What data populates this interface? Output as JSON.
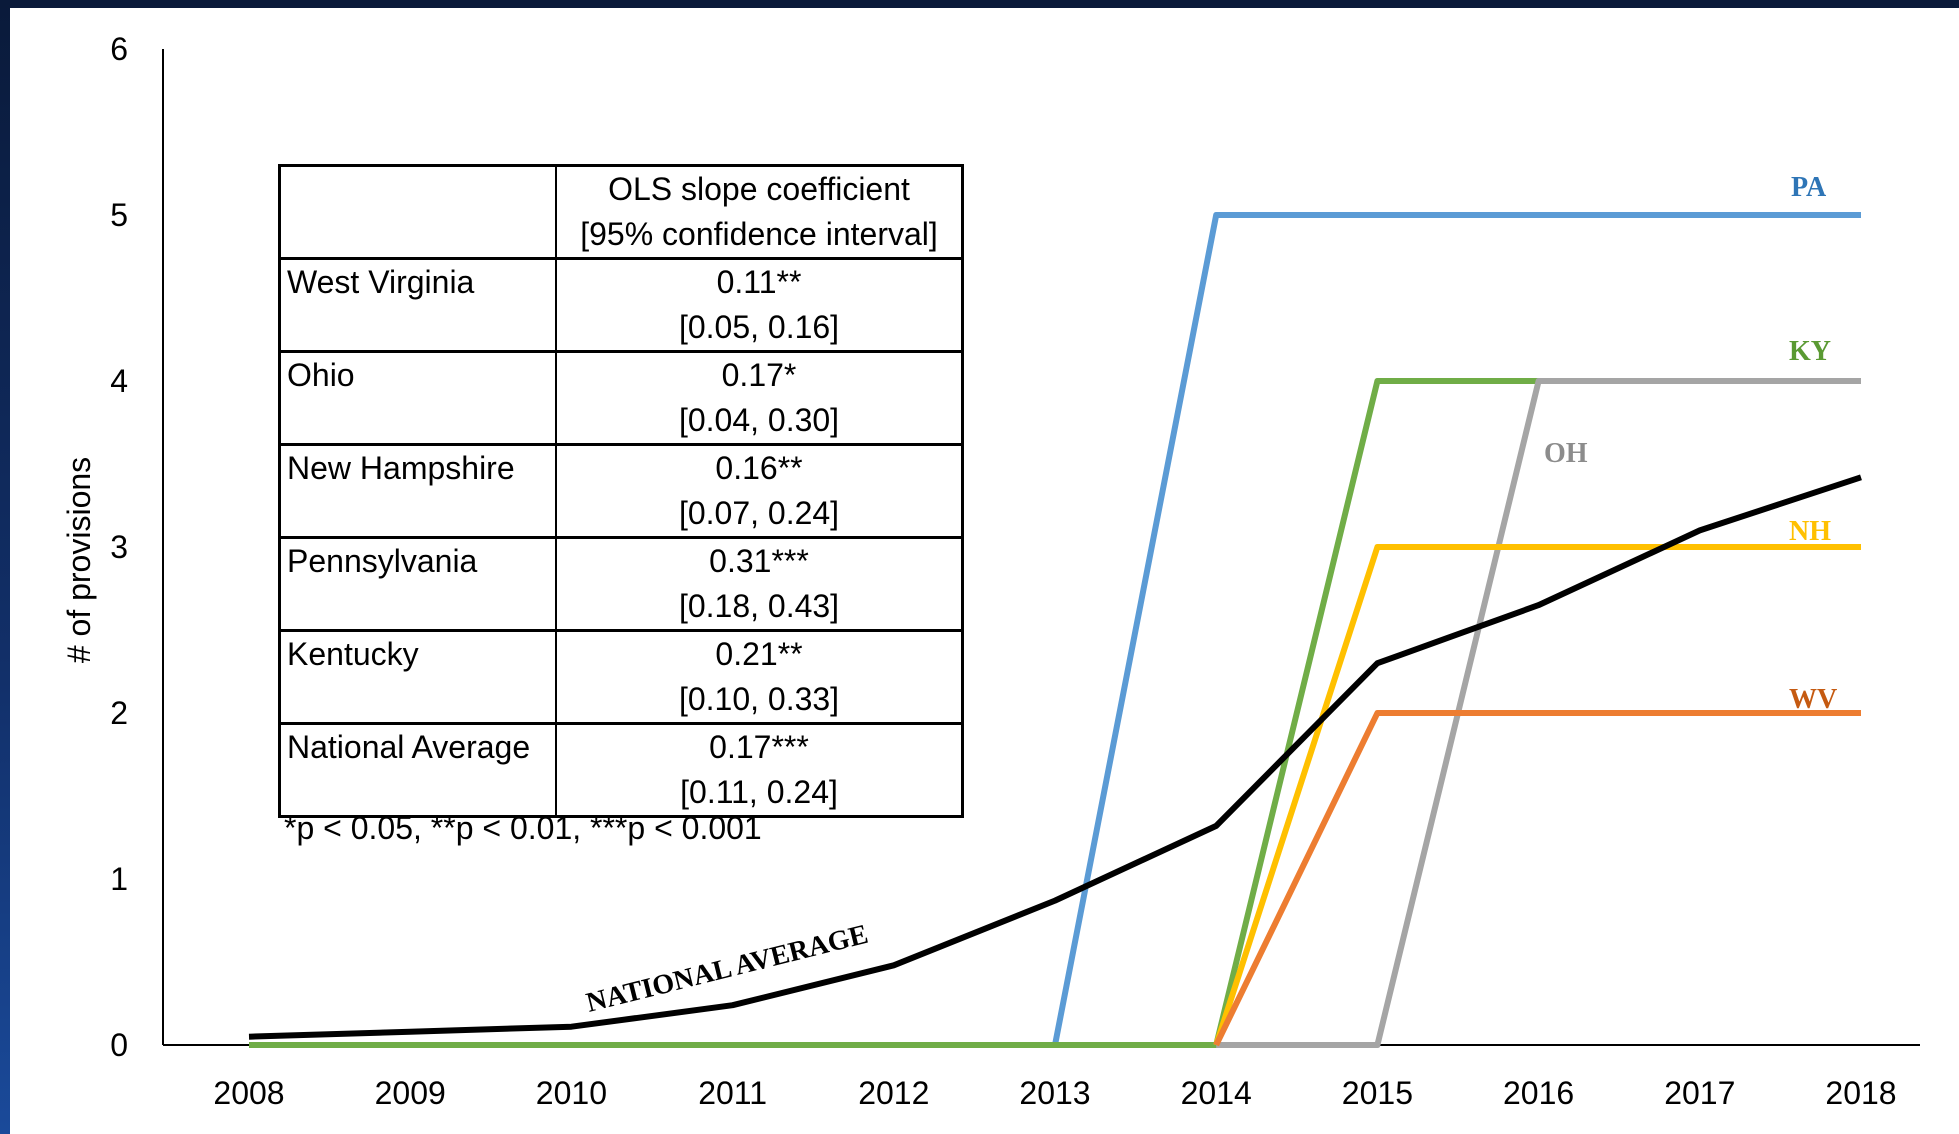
{
  "chart_data": {
    "type": "line",
    "ylabel": "# of provisions",
    "xlabel": "",
    "x": [
      "2008",
      "2009",
      "2010",
      "2011",
      "2012",
      "2013",
      "2014",
      "2015",
      "2016",
      "2017",
      "2018"
    ],
    "ylim": [
      0,
      6
    ],
    "yticks": [
      0,
      1,
      2,
      3,
      4,
      5,
      6
    ],
    "grid": false,
    "legend": "inline labels",
    "series": [
      {
        "name": "PA",
        "color": "#5b9bd5",
        "label_color": "#2e75b6",
        "points": [
          [
            2008,
            0
          ],
          [
            2013,
            0
          ],
          [
            2014,
            5
          ],
          [
            2018,
            5
          ]
        ]
      },
      {
        "name": "KY",
        "color": "#70ad47",
        "label_color": "#5a9a32",
        "points": [
          [
            2008,
            0
          ],
          [
            2014,
            0
          ],
          [
            2015,
            4
          ],
          [
            2018,
            4
          ]
        ]
      },
      {
        "name": "OH",
        "color": "#a5a5a5",
        "label_color": "#8c8c8c",
        "points": [
          [
            2014,
            0
          ],
          [
            2015,
            0
          ],
          [
            2016,
            4
          ],
          [
            2018,
            4
          ]
        ]
      },
      {
        "name": "NH",
        "color": "#ffc000",
        "label_color": "#ffc000",
        "points": [
          [
            2014,
            0
          ],
          [
            2015,
            3
          ],
          [
            2018,
            3
          ]
        ]
      },
      {
        "name": "WV",
        "color": "#ed7d31",
        "label_color": "#c55a11",
        "points": [
          [
            2014,
            0
          ],
          [
            2015,
            2
          ],
          [
            2018,
            2
          ]
        ]
      },
      {
        "name": "NATIONAL AVERAGE",
        "color": "#000000",
        "label_color": "#000000",
        "points": [
          [
            2008,
            0.05
          ],
          [
            2009,
            0.08
          ],
          [
            2010,
            0.11
          ],
          [
            2011,
            0.24
          ],
          [
            2012,
            0.48
          ],
          [
            2013,
            0.87
          ],
          [
            2014,
            1.32
          ],
          [
            2015,
            2.3
          ],
          [
            2016,
            2.65
          ],
          [
            2017,
            3.1
          ],
          [
            2018,
            3.42
          ]
        ]
      }
    ]
  },
  "table": {
    "header": [
      "",
      "OLS slope coefficient",
      "[95% confidence interval]"
    ],
    "rows": [
      {
        "name": "West Virginia",
        "coef": "0.11**",
        "ci": "[0.05, 0.16]"
      },
      {
        "name": "Ohio",
        "coef": "0.17*",
        "ci": "[0.04, 0.30]"
      },
      {
        "name": "New Hampshire",
        "coef": "0.16**",
        "ci": "[0.07, 0.24]"
      },
      {
        "name": "Pennsylvania",
        "coef": "0.31***",
        "ci": "[0.18, 0.43]"
      },
      {
        "name": "Kentucky",
        "coef": "0.21**",
        "ci": "[0.10, 0.33]"
      },
      {
        "name": "National Average",
        "coef": "0.17***",
        "ci": "[0.11, 0.24]"
      }
    ],
    "note": "*p < 0.05, **p < 0.01, ***p < 0.001"
  }
}
